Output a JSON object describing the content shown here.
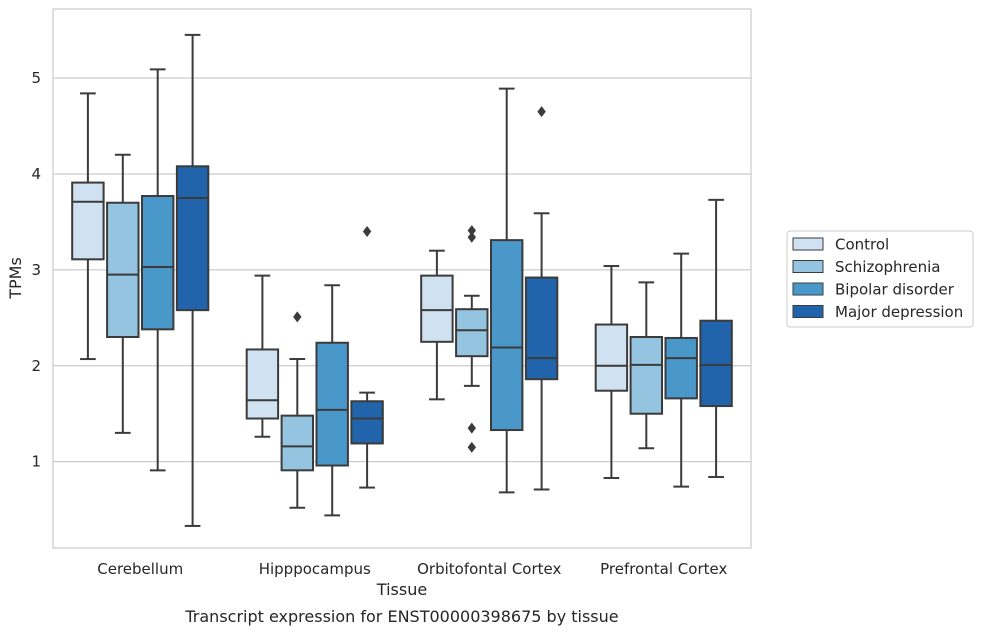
{
  "chart_data": {
    "type": "boxplot",
    "title": "",
    "caption": "Transcript expression for ENST00000398675 by tissue",
    "xlabel": "Tissue",
    "ylabel": "TPMs",
    "ylim": [
      0.1,
      5.72
    ],
    "yticks": [
      1,
      2,
      3,
      4,
      5
    ],
    "grid": "horizontal",
    "legend_position": "right",
    "categories": [
      "Cerebellum",
      "Hipppocampus",
      "Orbitofontal Cortex",
      "Prefrontal Cortex"
    ],
    "series": [
      {
        "name": "Control",
        "color": "#d0e1f2",
        "boxes": [
          {
            "whislo": 2.07,
            "q1": 3.11,
            "med": 3.71,
            "q3": 3.91,
            "whishi": 4.84,
            "fliers": []
          },
          {
            "whislo": 1.26,
            "q1": 1.45,
            "med": 1.64,
            "q3": 2.17,
            "whishi": 2.94,
            "fliers": []
          },
          {
            "whislo": 1.65,
            "q1": 2.25,
            "med": 2.58,
            "q3": 2.94,
            "whishi": 3.2,
            "fliers": []
          },
          {
            "whislo": 0.83,
            "q1": 1.74,
            "med": 2.0,
            "q3": 2.43,
            "whishi": 3.04,
            "fliers": []
          }
        ]
      },
      {
        "name": "Schizophrenia",
        "color": "#94c4df",
        "boxes": [
          {
            "whislo": 1.3,
            "q1": 2.3,
            "med": 2.95,
            "q3": 3.7,
            "whishi": 4.2,
            "fliers": []
          },
          {
            "whislo": 0.52,
            "q1": 0.91,
            "med": 1.16,
            "q3": 1.48,
            "whishi": 2.07,
            "fliers": [
              2.51
            ]
          },
          {
            "whislo": 1.79,
            "q1": 2.1,
            "med": 2.37,
            "q3": 2.59,
            "whishi": 2.73,
            "fliers": [
              3.34,
              3.41,
              1.35,
              1.15
            ]
          },
          {
            "whislo": 1.14,
            "q1": 1.5,
            "med": 2.01,
            "q3": 2.3,
            "whishi": 2.87,
            "fliers": []
          }
        ]
      },
      {
        "name": "Bipolar disorder",
        "color": "#4a98c9",
        "boxes": [
          {
            "whislo": 0.91,
            "q1": 2.38,
            "med": 3.03,
            "q3": 3.77,
            "whishi": 5.09,
            "fliers": []
          },
          {
            "whislo": 0.44,
            "q1": 0.96,
            "med": 1.54,
            "q3": 2.24,
            "whishi": 2.84,
            "fliers": []
          },
          {
            "whislo": 0.68,
            "q1": 1.33,
            "med": 2.19,
            "q3": 3.31,
            "whishi": 4.89,
            "fliers": []
          },
          {
            "whislo": 0.74,
            "q1": 1.66,
            "med": 2.08,
            "q3": 2.29,
            "whishi": 3.17,
            "fliers": []
          }
        ]
      },
      {
        "name": "Major depression",
        "color": "#2164ab",
        "boxes": [
          {
            "whislo": 0.33,
            "q1": 2.58,
            "med": 3.75,
            "q3": 4.08,
            "whishi": 5.45,
            "fliers": []
          },
          {
            "whislo": 0.73,
            "q1": 1.19,
            "med": 1.45,
            "q3": 1.63,
            "whishi": 1.72,
            "fliers": [
              3.4
            ]
          },
          {
            "whislo": 0.71,
            "q1": 1.86,
            "med": 2.08,
            "q3": 2.92,
            "whishi": 3.59,
            "fliers": [
              4.65
            ]
          },
          {
            "whislo": 0.84,
            "q1": 1.58,
            "med": 2.01,
            "q3": 2.47,
            "whishi": 3.73,
            "fliers": []
          }
        ]
      }
    ]
  }
}
